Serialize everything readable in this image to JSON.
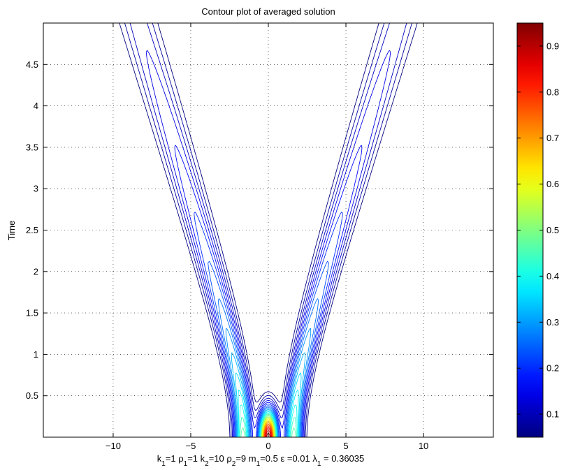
{
  "figure": {
    "title": "Contour plot of averaged solution",
    "ylabel": "Time",
    "xlabel_segments": [
      {
        "text": "k"
      },
      {
        "text": "1",
        "sub": true
      },
      {
        "text": "=1 "
      },
      {
        "text": "ρ"
      },
      {
        "text": "1",
        "sub": true
      },
      {
        "text": "=1   k"
      },
      {
        "text": "2",
        "sub": true
      },
      {
        "text": "=10 "
      },
      {
        "text": "ρ"
      },
      {
        "text": "2",
        "sub": true
      },
      {
        "text": "=9   m"
      },
      {
        "text": "1",
        "sub": true
      },
      {
        "text": "=0.5     ε =0.01   λ"
      },
      {
        "text": "1",
        "sub": true
      },
      {
        "text": " = 0.36035"
      }
    ]
  },
  "chart_data": {
    "type": "contour",
    "title": "Contour plot of averaged solution",
    "xlabel": "k1=1 ρ1=1   k2=10 ρ2=9   m1=0.5     ε =0.01   λ1 = 0.36035",
    "ylabel": "Time",
    "xlim": [
      -14.5,
      14.5
    ],
    "ylim": [
      0,
      5
    ],
    "x_ticks": [
      -10,
      -5,
      0,
      5,
      10
    ],
    "x_tick_labels": [
      "−10",
      "−5",
      "0",
      "5",
      "10"
    ],
    "y_ticks": [
      0.5,
      1,
      1.5,
      2,
      2.5,
      3,
      3.5,
      4,
      4.5
    ],
    "y_tick_labels": [
      "0.5",
      "1",
      "1.5",
      "2",
      "2.5",
      "3",
      "3.5",
      "4",
      "4.5"
    ],
    "grid": true,
    "grid_style": "dotted",
    "colormap": "jet",
    "colorbar": {
      "range": [
        0.05,
        0.95
      ],
      "ticks": [
        0.1,
        0.2,
        0.3,
        0.4,
        0.5,
        0.6,
        0.7,
        0.8,
        0.9
      ],
      "tick_labels": [
        "0.1",
        "0.2",
        "0.3",
        "0.4",
        "0.5",
        "0.6",
        "0.7",
        "0.8",
        "0.9"
      ]
    },
    "contour_levels": [
      0.05,
      0.08,
      0.11,
      0.14,
      0.17,
      0.2,
      0.23,
      0.26,
      0.29,
      0.32,
      0.35,
      0.38,
      0.41,
      0.44,
      0.47,
      0.5,
      0.53,
      0.56,
      0.59,
      0.62,
      0.65,
      0.68,
      0.71,
      0.74,
      0.77,
      0.8,
      0.83,
      0.86,
      0.89,
      0.92,
      0.95
    ],
    "features": {
      "v_shape_vertex": [
        0,
        1.0
      ],
      "right_branch_center_at_top": [
        8.2,
        5.0
      ],
      "left_branch_center_at_top": [
        -8.3,
        5.0
      ],
      "high_value_region": {
        "x_range": [
          -0.5,
          0.5
        ],
        "t_range": [
          0,
          0.5
        ],
        "max_value": 0.95
      }
    }
  }
}
